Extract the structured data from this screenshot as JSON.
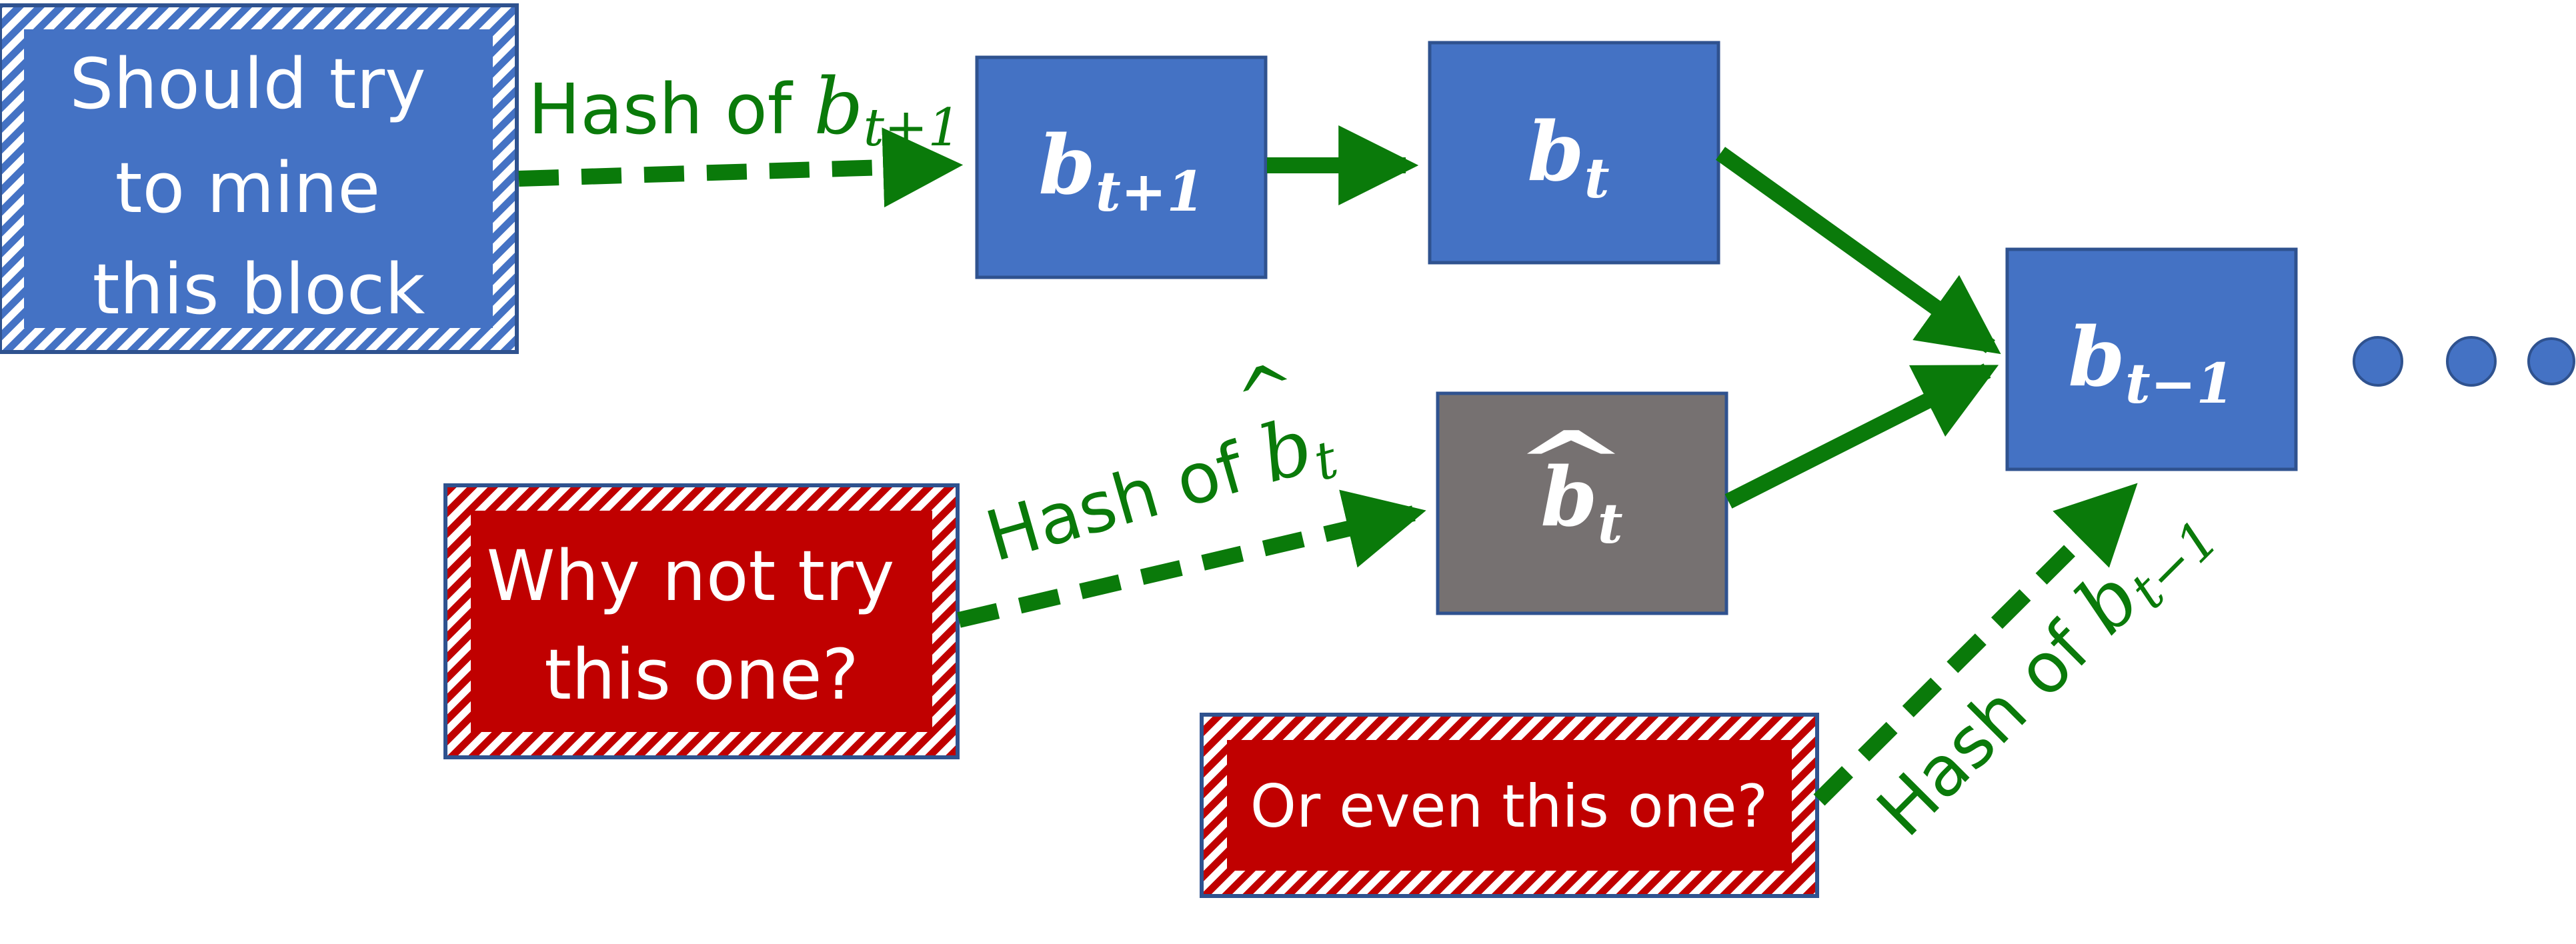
{
  "colors": {
    "block_blue": "#4472c4",
    "block_blue_border": "#2f528f",
    "block_gray": "#767171",
    "candidate_red": "#c00000",
    "arrow_green": "#0a7a0a",
    "dot_blue": "#4472c4"
  },
  "blocks": {
    "b_t_plus_1": {
      "base": "b",
      "sub": "t+1"
    },
    "b_t": {
      "base": "b",
      "sub": "t"
    },
    "b_hat_t": {
      "base": "b",
      "sub": "t",
      "hat": "^"
    },
    "b_t_minus_1": {
      "base": "b",
      "sub": "t−1"
    }
  },
  "candidates": {
    "should_mine": {
      "lines": [
        "Should try",
        "to mine",
        "this block"
      ]
    },
    "why_not": {
      "lines": [
        "Why not try",
        "this one?"
      ]
    },
    "or_even": {
      "text": "Or even this one?"
    }
  },
  "hash_labels": {
    "hash_t_plus_1": {
      "prefix": "Hash of ",
      "base": "b",
      "sub": "t+1"
    },
    "hash_hat_t": {
      "prefix": "Hash of ",
      "base": "b",
      "sub": "t",
      "hat": "^"
    },
    "hash_t_minus_1": {
      "prefix": "Hash of ",
      "base": "b",
      "sub": "t−1"
    }
  },
  "continuation": {
    "dots": 3,
    "icon": "ellipsis-dots-icon"
  }
}
